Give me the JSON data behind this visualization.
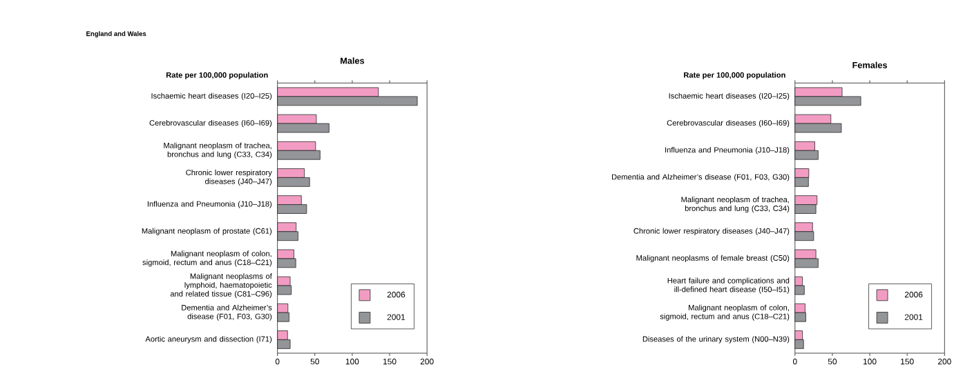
{
  "chart_data": [
    {
      "type": "bar",
      "orientation": "horizontal",
      "title": "Males",
      "xlabel": "Rate per 100,000 population",
      "annotations": [
        "England and Wales"
      ],
      "categories": [
        "Ischaemic heart diseases (I20–I25)",
        "Cerebrovascular diseases (I60–I69)",
        "Malignant neoplasm of trachea, bronchus and lung (C33, C34)",
        "Chronic lower respiratory diseases (J40–J47)",
        "Influenza and Pneumonia (J10–J18)",
        "Malignant neoplasm of prostate (C61)",
        "Malignant neoplasm of colon, sigmoid, rectum and anus (C18–C21)",
        "Malignant neoplasms of lymphoid, haematopoietic and related tissue (C81–C96)",
        "Dementia and Alzheimer’s disease (F01, F03, G30)",
        "Aortic aneurysm and dissection (I71)"
      ],
      "series": [
        {
          "name": "2006",
          "color": "#f39cc3",
          "values": [
            135,
            52,
            51,
            36,
            32,
            25,
            22,
            17,
            14,
            13.5
          ]
        },
        {
          "name": "2001",
          "color": "#939598",
          "values": [
            187,
            69,
            57,
            43,
            39,
            27.5,
            24.5,
            18.5,
            15.5,
            17
          ]
        }
      ],
      "xlim": [
        0,
        200
      ],
      "xticks": [
        0,
        50,
        100,
        150,
        200
      ],
      "legend": "bottom right",
      "grid": false
    },
    {
      "type": "bar",
      "orientation": "horizontal",
      "title": "Females",
      "xlabel": "Rate per 100,000 population",
      "categories": [
        "Ischaemic heart diseases (I20–I25)",
        "Cerebrovascular diseases (I60–I69)",
        "Influenza and Pneumonia (J10–J18)",
        "Dementia and Alzheimer’s disease (F01, F03, G30)",
        "Malignant neoplasm of trachea, bronchus and lung (C33, C34)",
        "Chronic lower respiratory diseases (J40–J47)",
        "Malignant neoplasms of female breast (C50)",
        "Heart failure and complications and ill-defined heart disease (I50–I51)",
        "Malignant neoplasm of colon, sigmoid, rectum and anus (C18–C21)",
        "Diseases of the urinary system (N00–N39)"
      ],
      "series": [
        {
          "name": "2006",
          "color": "#f39cc3",
          "values": [
            63,
            48,
            26.5,
            18.5,
            29.5,
            23.5,
            28,
            10,
            13.5,
            10
          ]
        },
        {
          "name": "2001",
          "color": "#939598",
          "values": [
            88,
            62,
            31,
            18,
            28,
            25,
            31,
            12.5,
            14.5,
            11.5
          ]
        }
      ],
      "xlim": [
        0,
        200
      ],
      "xticks": [
        0,
        50,
        100,
        150,
        200
      ],
      "legend": "bottom right",
      "grid": false
    }
  ]
}
